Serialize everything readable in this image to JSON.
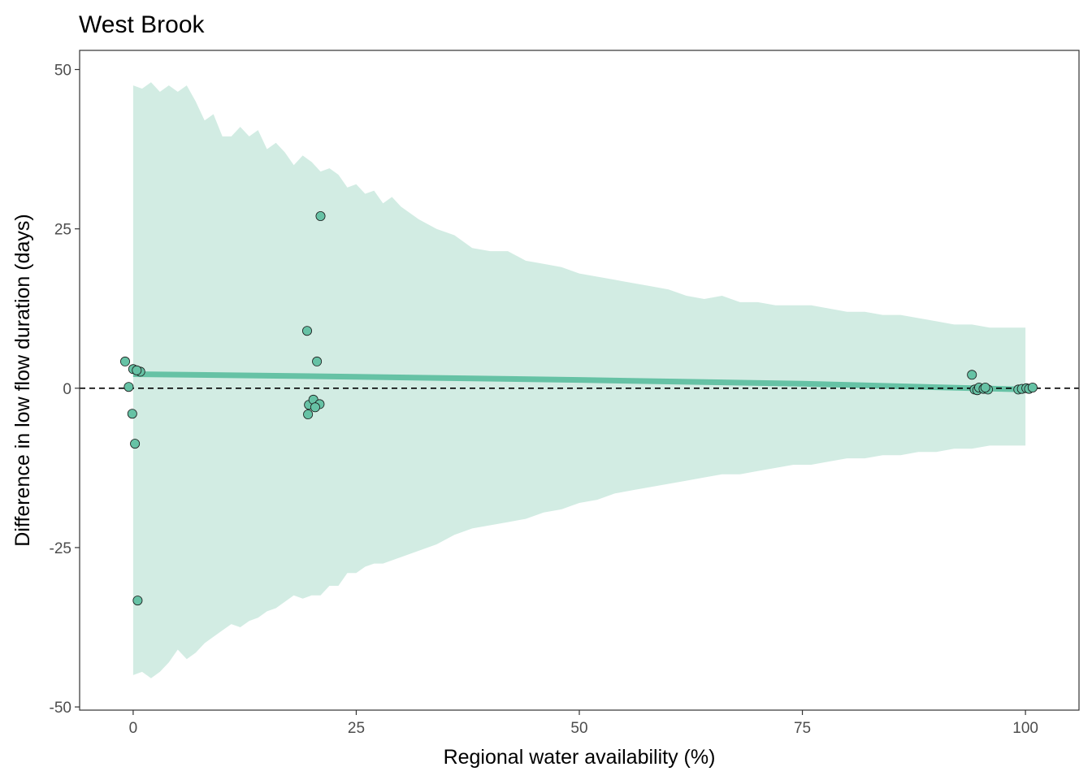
{
  "chart_data": {
    "type": "scatter",
    "title": "West Brook",
    "xlabel": "Regional water availability (%)",
    "ylabel": "Difference in low flow duration (days)",
    "xlim": [
      -6,
      106
    ],
    "ylim": [
      -50.5,
      53
    ],
    "x_ticks": [
      0,
      25,
      50,
      75,
      100
    ],
    "y_ticks": [
      -50,
      -25,
      0,
      25,
      50
    ],
    "grid": false,
    "reference_line": {
      "y": 0,
      "style": "dashed",
      "color": "#000000"
    },
    "colors": {
      "fill": "#66c2a5",
      "band_fill": "#d2ece3",
      "trend": "#66c2a5",
      "point_stroke": "#1a1a1a"
    },
    "band": {
      "x": [
        0,
        1,
        2,
        3,
        4,
        5,
        6,
        7,
        8,
        9,
        10,
        11,
        12,
        13,
        14,
        15,
        16,
        17,
        18,
        19,
        20,
        21,
        22,
        23,
        24,
        25,
        26,
        27,
        28,
        29,
        30,
        32,
        34,
        36,
        38,
        40,
        42,
        44,
        46,
        48,
        50,
        52,
        54,
        56,
        58,
        60,
        62,
        64,
        66,
        68,
        70,
        72,
        74,
        76,
        78,
        80,
        82,
        84,
        86,
        88,
        90,
        92,
        94,
        96,
        98,
        100
      ],
      "upper": [
        47.5,
        47.0,
        48.0,
        46.5,
        47.5,
        46.5,
        47.5,
        45.0,
        42.0,
        43.0,
        39.5,
        39.5,
        41.0,
        39.5,
        40.5,
        37.5,
        38.5,
        37.0,
        35.0,
        36.5,
        35.5,
        34.0,
        34.5,
        33.5,
        31.5,
        32.0,
        30.5,
        31.0,
        29.0,
        30.0,
        28.5,
        26.5,
        25.0,
        24.0,
        22.0,
        21.5,
        21.5,
        20.0,
        19.5,
        19.0,
        18.0,
        17.5,
        17.0,
        16.5,
        16.0,
        15.5,
        14.5,
        14.0,
        14.5,
        13.5,
        13.5,
        13.0,
        13.0,
        13.0,
        12.5,
        12.0,
        12.0,
        11.5,
        11.5,
        11.0,
        10.5,
        10.0,
        10.0,
        9.5,
        9.5,
        9.5
      ],
      "lower": [
        -45.0,
        -44.5,
        -45.5,
        -44.5,
        -43.0,
        -41.0,
        -42.5,
        -41.5,
        -40.0,
        -39.0,
        -38.0,
        -37.0,
        -37.5,
        -36.5,
        -36.0,
        -35.0,
        -34.5,
        -33.5,
        -32.5,
        -33.0,
        -32.5,
        -32.5,
        -31.0,
        -31.0,
        -29.0,
        -29.0,
        -28.0,
        -27.5,
        -27.5,
        -27.0,
        -26.5,
        -25.5,
        -24.5,
        -23.0,
        -22.0,
        -21.5,
        -21.0,
        -20.5,
        -19.5,
        -19.0,
        -18.0,
        -17.5,
        -16.5,
        -16.0,
        -15.5,
        -15.0,
        -14.5,
        -14.0,
        -13.5,
        -13.5,
        -13.0,
        -12.5,
        -12.0,
        -12.0,
        -11.5,
        -11.0,
        -11.0,
        -10.5,
        -10.5,
        -10.0,
        -10.0,
        -9.5,
        -9.5,
        -9.0,
        -9.0,
        -9.0
      ]
    },
    "trend": {
      "x": [
        0,
        25,
        50,
        75,
        100
      ],
      "y": [
        2.2,
        1.8,
        1.3,
        0.7,
        -0.2
      ]
    },
    "points": {
      "x": [
        -0.9,
        -0.5,
        0.0,
        -0.1,
        0.2,
        0.5,
        0.8,
        0.4,
        19.5,
        19.7,
        19.6,
        20.2,
        20.6,
        20.9,
        20.4,
        21.0,
        94.0,
        94.3,
        94.6,
        94.8,
        95.3,
        95.8,
        95.5,
        99.2,
        99.6,
        100.1,
        100.4,
        100.8
      ],
      "y": [
        4.2,
        0.2,
        3.0,
        -4.0,
        -8.7,
        -33.3,
        2.6,
        2.8,
        9.0,
        -2.6,
        -4.1,
        -1.8,
        4.2,
        -2.5,
        -3.0,
        27.0,
        2.1,
        -0.2,
        -0.3,
        0.1,
        -0.1,
        -0.2,
        0.1,
        -0.2,
        -0.1,
        0.0,
        -0.1,
        0.1
      ]
    }
  }
}
